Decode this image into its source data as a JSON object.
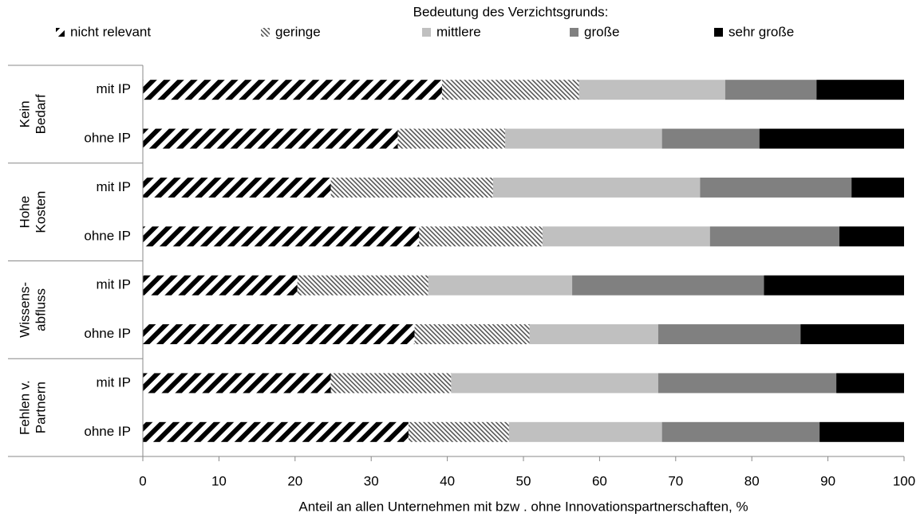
{
  "chart_data": {
    "type": "stacked-barh",
    "legend_title": "Bedeutung des Verzichtsgrunds:",
    "x_label": "Anteil an allen Unternehmen mit bzw . ohne Innovationspartnerschaften, %",
    "groups": [
      [
        "Kein",
        "Bedarf"
      ],
      [
        "Hohe",
        "Kosten"
      ],
      [
        "Wissens-",
        "abfluss"
      ],
      [
        "Fehlen v.",
        "Partnern"
      ]
    ],
    "categories": [
      "mit IP",
      "ohne IP",
      "mit IP",
      "ohne IP",
      "mit IP",
      "ohne IP",
      "mit IP",
      "ohne IP"
    ],
    "series": [
      {
        "name": "nicht relevant",
        "color": "#000000",
        "pattern": "thick-stripes",
        "values": [
          39.3,
          33.5,
          24.7,
          36.3,
          20.3,
          35.7,
          24.7,
          34.9
        ]
      },
      {
        "name": "geringe",
        "color": "#555555",
        "pattern": "fine-hatch",
        "values": [
          18.0,
          14.1,
          21.3,
          16.2,
          17.2,
          15.1,
          15.8,
          13.2
        ]
      },
      {
        "name": "mittlere",
        "color": "#c0c0c0",
        "pattern": "solid",
        "values": [
          19.2,
          20.6,
          27.2,
          22.0,
          18.9,
          16.9,
          27.2,
          20.1
        ]
      },
      {
        "name": "große",
        "color": "#808080",
        "pattern": "solid",
        "values": [
          12.0,
          12.8,
          19.9,
          17.0,
          25.2,
          18.7,
          23.4,
          20.7
        ]
      },
      {
        "name": "sehr große",
        "color": "#000000",
        "pattern": "solid",
        "values": [
          11.5,
          19.0,
          6.9,
          8.5,
          18.4,
          13.6,
          8.9,
          11.1
        ]
      }
    ],
    "xlim": [
      0,
      100
    ],
    "xticks": [
      0,
      10,
      20,
      30,
      40,
      50,
      60,
      70,
      80,
      90,
      100
    ],
    "legend": "top"
  }
}
